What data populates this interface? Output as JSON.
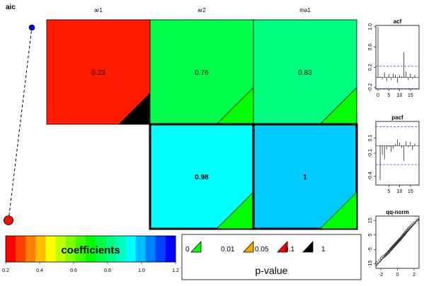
{
  "chart_data": [
    {
      "type": "line",
      "title": "aic",
      "x": [
        1,
        2
      ],
      "y": [
        0,
        1
      ],
      "start_point_color": "#0000cc",
      "end_point_color": "#ee1100"
    },
    {
      "type": "heatmap",
      "columns": [
        "ar1",
        "ar2",
        "ma1"
      ],
      "rows": [
        {
          "cells": [
            {
              "col": 0,
              "value": "0.23",
              "coef": 0.23,
              "fill": "#ff1a00",
              "pvalue_band": "0.1",
              "triangle_fill": "#000000"
            },
            {
              "col": 1,
              "value": "0.76",
              "coef": 0.76,
              "fill": "#00ff4c",
              "pvalue_band": "0",
              "triangle_fill": "#00ff00"
            },
            {
              "col": 2,
              "value": "0.83",
              "coef": 0.83,
              "fill": "#00ff7f",
              "pvalue_band": "0",
              "triangle_fill": "#00ff00"
            }
          ]
        },
        {
          "cells": [
            {
              "col": 1,
              "value": "0.98",
              "coef": 0.98,
              "fill": "#00ffff",
              "pvalue_band": "0",
              "triangle_fill": "#00ff00",
              "bold": true,
              "thick_border": true
            },
            {
              "col": 2,
              "value": "1",
              "coef": 1.0,
              "fill": "#00ccff",
              "pvalue_band": "0",
              "triangle_fill": "#00ff00",
              "bold": true,
              "thick_border": true
            }
          ]
        }
      ]
    },
    {
      "type": "bar",
      "title": "acf",
      "xlim": [
        0,
        18
      ],
      "ylim": [
        -0.2,
        1.0
      ],
      "x_ticks": [
        "0",
        "5",
        "10",
        "15"
      ],
      "y_ticks": [
        "-0.2",
        "0.2",
        "0.6",
        "1.0"
      ],
      "conf_band": [
        -0.22,
        0.22
      ],
      "lags": [
        0,
        1,
        2,
        3,
        4,
        5,
        6,
        7,
        8,
        9,
        10,
        11,
        12,
        13,
        14,
        15,
        16,
        17
      ],
      "values": [
        1.0,
        0.02,
        -0.04,
        0.1,
        -0.07,
        0.06,
        -0.05,
        0.08,
        0.05,
        -0.1,
        0.04,
        0.02,
        0.5,
        0.12,
        -0.05,
        0.08,
        -0.03,
        0.05
      ]
    },
    {
      "type": "bar",
      "title": "pacf",
      "xlim": [
        0,
        18
      ],
      "ylim": [
        -0.5,
        0.3
      ],
      "x_ticks": [
        "5",
        "10",
        "15"
      ],
      "y_ticks": [
        "-0.4",
        "-0.1",
        "0.1"
      ],
      "conf_band": [
        -0.25,
        0.25
      ],
      "lags": [
        1,
        2,
        3,
        4,
        5,
        6,
        7,
        8,
        9,
        10,
        11,
        12,
        13,
        14,
        15,
        16,
        17
      ],
      "values": [
        -0.45,
        -0.12,
        -0.18,
        -0.05,
        -0.02,
        -0.08,
        -0.04,
        0.02,
        0.08,
        0.04,
        -0.03,
        -0.2,
        0.06,
        -0.02,
        0.05,
        -0.06,
        0.03
      ]
    },
    {
      "type": "scatter",
      "title": "qq-norm",
      "xlim": [
        -2.6,
        2.6
      ],
      "ylim": [
        -18,
        18
      ],
      "x_ticks": [
        "-2",
        "0",
        "2"
      ],
      "y_ticks": [
        "-15",
        "-5",
        "5",
        "15"
      ],
      "points": [
        [
          -2.5,
          -14
        ],
        [
          -2.1,
          -12.5
        ],
        [
          -1.9,
          -11
        ],
        [
          -1.7,
          -10
        ],
        [
          -1.55,
          -9.5
        ],
        [
          -1.4,
          -8.7
        ],
        [
          -1.3,
          -8
        ],
        [
          -1.2,
          -7.6
        ],
        [
          -1.1,
          -7
        ],
        [
          -1.0,
          -6.2
        ],
        [
          -0.9,
          -5.6
        ],
        [
          -0.82,
          -5
        ],
        [
          -0.74,
          -4.6
        ],
        [
          -0.66,
          -4
        ],
        [
          -0.58,
          -3.6
        ],
        [
          -0.5,
          -3
        ],
        [
          -0.42,
          -2.6
        ],
        [
          -0.34,
          -2
        ],
        [
          -0.26,
          -1.6
        ],
        [
          -0.18,
          -1
        ],
        [
          -0.1,
          -0.6
        ],
        [
          -0.02,
          0
        ],
        [
          0.06,
          0.4
        ],
        [
          0.14,
          1
        ],
        [
          0.22,
          1.4
        ],
        [
          0.3,
          2
        ],
        [
          0.38,
          2.5
        ],
        [
          0.46,
          3
        ],
        [
          0.54,
          3.6
        ],
        [
          0.62,
          4.2
        ],
        [
          0.7,
          4.8
        ],
        [
          0.78,
          5.2
        ],
        [
          0.86,
          5.8
        ],
        [
          0.94,
          6.4
        ],
        [
          1.02,
          7
        ],
        [
          1.1,
          7.6
        ],
        [
          1.2,
          8.2
        ],
        [
          1.3,
          9
        ],
        [
          1.42,
          9.8
        ],
        [
          1.56,
          10.6
        ],
        [
          1.72,
          11.5
        ],
        [
          1.9,
          12.6
        ],
        [
          2.1,
          13.6
        ],
        [
          2.4,
          15.2
        ]
      ],
      "line": [
        [
          -2.6,
          -16.5
        ],
        [
          2.6,
          16.5
        ]
      ]
    },
    {
      "type": "legend",
      "label": "coefficients",
      "range": [
        0.2,
        1.2
      ],
      "ticks": [
        "0.2",
        "0.4",
        "0.6",
        "0.8",
        "1.0",
        "1.2"
      ],
      "gradient": [
        "#ff0000",
        "#ff4000",
        "#ff8000",
        "#ffbf00",
        "#ffff00",
        "#bfff00",
        "#80ff00",
        "#40ff00",
        "#00ff00",
        "#00ff40",
        "#00ff80",
        "#00ffbf",
        "#00ffff",
        "#00bfff",
        "#0080ff",
        "#0040ff",
        "#0000ff"
      ]
    },
    {
      "type": "legend",
      "label": "p-value",
      "items": [
        {
          "label": "0",
          "color": "#00ff00"
        },
        {
          "label": "0.01",
          "color": "#ffa500"
        },
        {
          "label": "0.05",
          "color": "#ff0000"
        },
        {
          "label": "0.1",
          "color": "#000000"
        },
        {
          "label": "1",
          "color": null
        }
      ]
    }
  ]
}
